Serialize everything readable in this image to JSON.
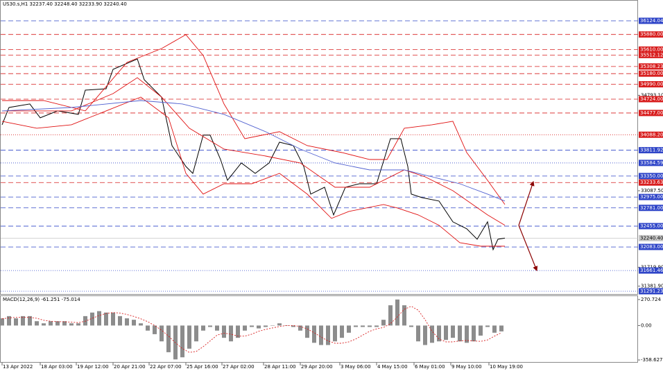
{
  "chart_data": [
    {
      "type": "line",
      "title": "US30.s,H1  32237.40 32248.40 32233.90 32240.40",
      "xlim": [
        0,
        917
      ],
      "ylim": [
        31229,
        36496
      ],
      "xticks": [
        {
          "value": 0,
          "label": "13 Apr 2022"
        },
        {
          "value": 55,
          "label": "18 Apr 03:00"
        },
        {
          "value": 107,
          "label": "19 Apr 12:00"
        },
        {
          "value": 160,
          "label": "20 Apr 21:00"
        },
        {
          "value": 212,
          "label": "22 Apr 07:00"
        },
        {
          "value": 265,
          "label": "25 Apr 16:00"
        },
        {
          "value": 317,
          "label": "27 Apr 02:00"
        },
        {
          "value": 377,
          "label": "28 Apr 11:00"
        },
        {
          "value": 430,
          "label": "29 Apr 20:00"
        },
        {
          "value": 487,
          "label": "3 May 06:00"
        },
        {
          "value": 540,
          "label": "4 May 15:00"
        },
        {
          "value": 594,
          "label": "6 May 01:00"
        },
        {
          "value": 647,
          "label": "9 May 10:00"
        },
        {
          "value": 702,
          "label": "10 May 19:00"
        }
      ],
      "yticks": [
        {
          "value": 34793.1,
          "label": "34793.10"
        },
        {
          "value": 33087.5,
          "label": "33087.50"
        },
        {
          "value": 31719.9,
          "label": "31719.90"
        },
        {
          "value": 31381.9,
          "label": "31381.90"
        }
      ],
      "levels": [
        {
          "value": 36124.04,
          "label": "36124.04",
          "color": "#2f45c8",
          "style": "dashed"
        },
        {
          "value": 35880,
          "label": "35880.00",
          "color": "#d81e1e",
          "style": "dashed"
        },
        {
          "value": 35610,
          "label": "35610.00",
          "color": "#d81e1e",
          "style": "dashed"
        },
        {
          "value": 35512.12,
          "label": "35512.12",
          "color": "#d81e1e",
          "style": "dashed"
        },
        {
          "value": 35308.23,
          "label": "35308.23",
          "color": "#d81e1e",
          "style": "dashed"
        },
        {
          "value": 35180,
          "label": "35180.00",
          "color": "#d81e1e",
          "style": "dashed"
        },
        {
          "value": 34990,
          "label": "34990.00",
          "color": "#d81e1e",
          "style": "dashed"
        },
        {
          "value": 34724,
          "label": "34724.00",
          "color": "#d81e1e",
          "style": "dashed"
        },
        {
          "value": 34477,
          "label": "34477.00",
          "color": "#d81e1e",
          "style": "dashed"
        },
        {
          "value": 34088.2,
          "label": "34088.20",
          "color": "#d81e1e",
          "style": "dotted"
        },
        {
          "value": 33811.92,
          "label": "33811.92",
          "color": "#2f45c8",
          "style": "dashed"
        },
        {
          "value": 33584.59,
          "label": "33584.59",
          "color": "#2f45c8",
          "style": "dotted"
        },
        {
          "value": 33350,
          "label": "33350.00",
          "color": "#2f45c8",
          "style": "dashed"
        },
        {
          "value": 33233.63,
          "label": "33233.63",
          "color": "#d81e1e",
          "style": "dashed"
        },
        {
          "value": 32975,
          "label": "32975.00",
          "color": "#2f45c8",
          "style": "dashed"
        },
        {
          "value": 32781,
          "label": "32781.00",
          "color": "#2f45c8",
          "style": "dashed"
        },
        {
          "value": 32455,
          "label": "32455.00",
          "color": "#2f45c8",
          "style": "dashed"
        },
        {
          "value": 32083,
          "label": "32083.00",
          "color": "#2f45c8",
          "style": "dashed"
        },
        {
          "value": 31661.46,
          "label": "31661.46",
          "color": "#2f45c8",
          "style": "dotted"
        },
        {
          "value": 31291.23,
          "label": "31291.23",
          "color": "#2f45c8",
          "style": "dotted"
        }
      ],
      "current": {
        "value": 32240.4,
        "label": "32240.40"
      },
      "series": [
        {
          "color": "#000000",
          "x": [
            0,
            10,
            40,
            55,
            80,
            110,
            120,
            150,
            160,
            195,
            205,
            230,
            245,
            265,
            275,
            290,
            300,
            315,
            325,
            345,
            365,
            385,
            400,
            420,
            435,
            445,
            465,
            478,
            495,
            515,
            540,
            560,
            575,
            585,
            590,
            605,
            630,
            650,
            670,
            685,
            700,
            708,
            715,
            725
          ],
          "values": [
            34266,
            34575,
            34638,
            34390,
            34514,
            34452,
            34885,
            34910,
            35257,
            35443,
            35071,
            34761,
            33894,
            33522,
            33398,
            34080,
            34080,
            33646,
            33274,
            33584,
            33398,
            33584,
            33956,
            33894,
            33522,
            33027,
            33150,
            32655,
            33150,
            33212,
            33212,
            34018,
            34018,
            33522,
            33027,
            32965,
            32903,
            32531,
            32407,
            32221,
            32531,
            32035,
            32221,
            32240.4
          ]
        },
        {
          "color": "#e01010",
          "x": [
            0,
            60,
            120,
            180,
            230,
            265,
            290,
            320,
            350,
            400,
            440,
            490,
            530,
            555,
            580,
            620,
            650,
            670,
            700,
            725
          ],
          "values": [
            34699,
            34699,
            34514,
            35381,
            35629,
            35876,
            35505,
            34638,
            34018,
            34142,
            33894,
            33770,
            33646,
            33646,
            34204,
            34266,
            34328,
            33770,
            33274,
            32841
          ]
        },
        {
          "color": "#e01010",
          "x": [
            0,
            50,
            100,
            150,
            200,
            240,
            265,
            290,
            320,
            360,
            400,
            440,
            475,
            500,
            550,
            570,
            600,
            630,
            660,
            690,
            725
          ],
          "values": [
            34328,
            34204,
            34266,
            34514,
            34761,
            34390,
            33398,
            33027,
            33212,
            33212,
            33398,
            33027,
            32593,
            32717,
            32841,
            32779,
            32655,
            32469,
            32159,
            32097,
            32097
          ]
        },
        {
          "color": "#e01010",
          "x": [
            0,
            100,
            160,
            195,
            230,
            270,
            320,
            380,
            430,
            480,
            530,
            580,
            610,
            650,
            700,
            725
          ],
          "values": [
            34514,
            34514,
            34823,
            35108,
            34761,
            34204,
            33832,
            33708,
            33584,
            33150,
            33150,
            33460,
            33336,
            33088,
            32655,
            32469
          ]
        },
        {
          "color": "#5060d0",
          "x": [
            0,
            100,
            200,
            260,
            320,
            380,
            430,
            480,
            530,
            580,
            620,
            660,
            700,
            725
          ],
          "values": [
            34514,
            34575,
            34699,
            34638,
            34452,
            34142,
            33832,
            33584,
            33460,
            33460,
            33336,
            33212,
            33027,
            32903
          ]
        }
      ]
    },
    {
      "type": "bar",
      "title": "MACD(12,26,9) -61.251 -75.014",
      "color": "#8c8c8c",
      "ylim": [
        -387,
        306.5
      ],
      "yticks": [
        270.724,
        {
          "value": 0,
          "label": "0.00"
        },
        -358.627
      ],
      "x": [
        0,
        10,
        20,
        30,
        40,
        50,
        60,
        70,
        80,
        90,
        100,
        110,
        120,
        130,
        140,
        150,
        160,
        170,
        180,
        190,
        200,
        210,
        220,
        230,
        240,
        250,
        260,
        270,
        280,
        290,
        300,
        310,
        320,
        330,
        340,
        350,
        360,
        370,
        380,
        390,
        400,
        410,
        420,
        430,
        440,
        450,
        460,
        470,
        480,
        490,
        500,
        510,
        520,
        530,
        540,
        550,
        560,
        570,
        580,
        590,
        600,
        610,
        620,
        630,
        640,
        650,
        660,
        670,
        680,
        690,
        700,
        710,
        720
      ],
      "values": [
        75,
        98,
        75,
        98,
        98,
        45,
        23,
        45,
        45,
        45,
        23,
        23,
        98,
        135,
        150,
        135,
        135,
        98,
        75,
        60,
        23,
        -53,
        -90,
        -165,
        -278,
        -353,
        -331,
        -241,
        -165,
        -53,
        -15,
        -53,
        -128,
        -165,
        -128,
        -53,
        -15,
        -30,
        -15,
        0,
        23,
        0,
        -15,
        -53,
        -128,
        -180,
        -203,
        -203,
        -165,
        -128,
        -75,
        -15,
        -15,
        -15,
        -15,
        60,
        211,
        271,
        211,
        -15,
        -165,
        -203,
        -180,
        -165,
        -150,
        -128,
        -165,
        -180,
        -165,
        -105,
        -15,
        -75,
        -61.251
      ],
      "signal": {
        "color": "#d81e1e",
        "values": [
          70,
          80,
          85,
          85,
          85,
          75,
          55,
          45,
          40,
          40,
          35,
          30,
          45,
          75,
          105,
          125,
          135,
          130,
          115,
          95,
          70,
          40,
          0,
          -50,
          -110,
          -180,
          -240,
          -280,
          -270,
          -220,
          -160,
          -100,
          -80,
          -90,
          -110,
          -110,
          -90,
          -60,
          -40,
          -25,
          -10,
          0,
          0,
          -10,
          -35,
          -75,
          -120,
          -160,
          -185,
          -185,
          -170,
          -140,
          -100,
          -60,
          -35,
          -20,
          20,
          90,
          170,
          200,
          160,
          60,
          -60,
          -140,
          -170,
          -170,
          -160,
          -155,
          -160,
          -165,
          -150,
          -110,
          -75.014
        ]
      }
    }
  ]
}
